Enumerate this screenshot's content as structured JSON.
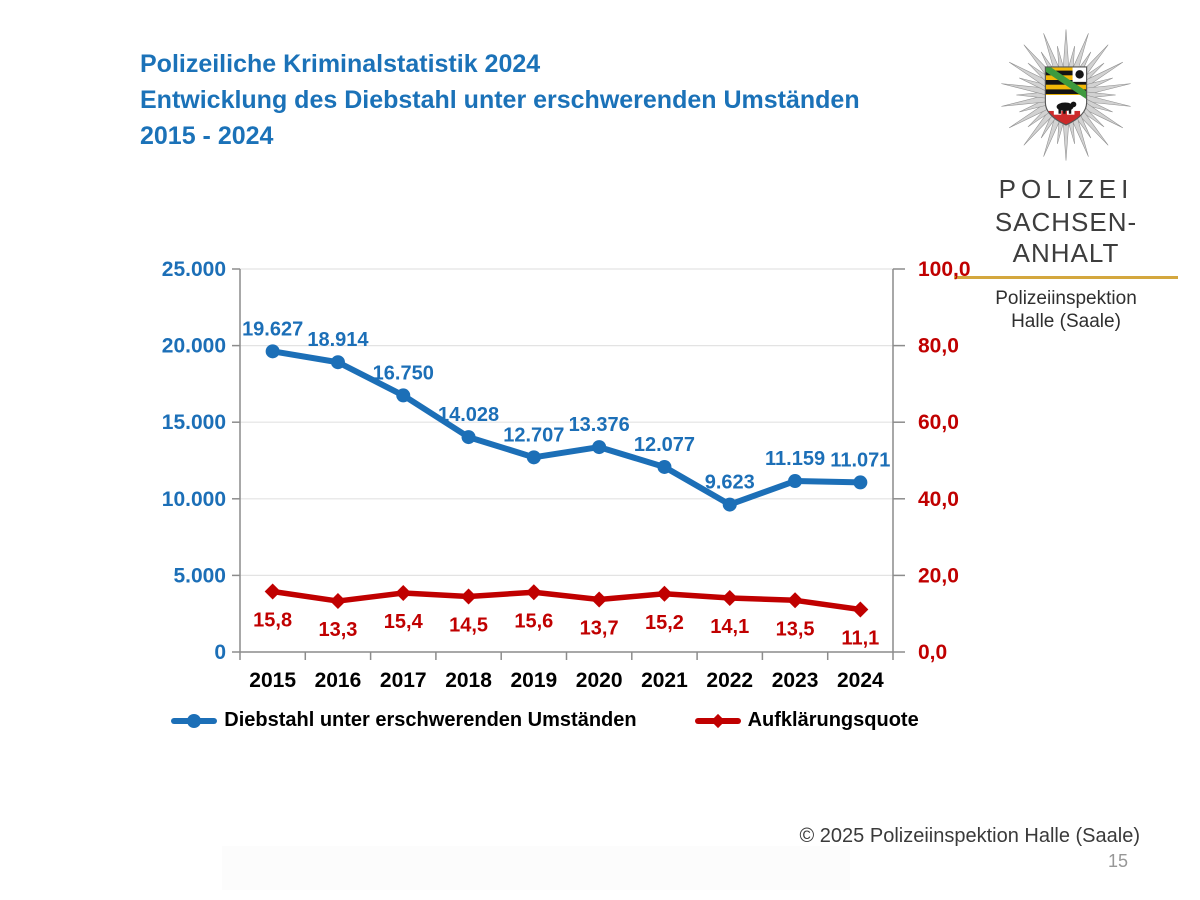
{
  "slide": {
    "title_lines": [
      "Polizeiliche Kriminalstatistik 2024",
      "Entwicklung des Diebstahl unter erschwerenden Umständen",
      "2015 - 2024"
    ],
    "title_color": "#1b72b8"
  },
  "logo": {
    "org_line1": "POLIZEI",
    "org_line2": "SACHSEN-ANHALT",
    "dept_line1": "Polizeiinspektion",
    "dept_line2": "Halle (Saale)",
    "accent_color": "#d4a73e"
  },
  "chart_data": {
    "type": "line",
    "categories": [
      "2015",
      "2016",
      "2017",
      "2018",
      "2019",
      "2020",
      "2021",
      "2022",
      "2023",
      "2024"
    ],
    "series": [
      {
        "name": "Diebstahl unter erschwerenden Umständen",
        "axis": "left",
        "color": "#1c6fb7",
        "marker": "circle",
        "values": [
          19627,
          18914,
          16750,
          14028,
          12707,
          13376,
          12077,
          9623,
          11159,
          11071
        ],
        "labels": [
          "19.627",
          "18.914",
          "16.750",
          "14.028",
          "12.707",
          "13.376",
          "12.077",
          "9.623",
          "11.159",
          "11.071"
        ],
        "label_position": "above"
      },
      {
        "name": "Aufklärungsquote",
        "axis": "right",
        "color": "#c00000",
        "marker": "diamond",
        "values": [
          15.8,
          13.3,
          15.4,
          14.5,
          15.6,
          13.7,
          15.2,
          14.1,
          13.5,
          11.1
        ],
        "labels": [
          "15,8",
          "13,3",
          "15,4",
          "14,5",
          "15,6",
          "13,7",
          "15,2",
          "14,1",
          "13,5",
          "11,1"
        ],
        "label_position": "below"
      }
    ],
    "left_axis": {
      "min": 0,
      "max": 25000,
      "color": "#1c6fb7",
      "ticks": [
        {
          "v": 0,
          "label": "0"
        },
        {
          "v": 5000,
          "label": "5.000"
        },
        {
          "v": 10000,
          "label": "10.000"
        },
        {
          "v": 15000,
          "label": "15.000"
        },
        {
          "v": 20000,
          "label": "20.000"
        },
        {
          "v": 25000,
          "label": "25.000"
        }
      ]
    },
    "right_axis": {
      "min": 0,
      "max": 100,
      "color": "#c00000",
      "ticks": [
        {
          "v": 0,
          "label": "0,0"
        },
        {
          "v": 20,
          "label": "20,0"
        },
        {
          "v": 40,
          "label": "40,0"
        },
        {
          "v": 60,
          "label": "60,0"
        },
        {
          "v": 80,
          "label": "80,0"
        },
        {
          "v": 100,
          "label": "100,0"
        }
      ]
    },
    "grid": true,
    "legend_position": "bottom"
  },
  "footer": {
    "copyright": "© 2025 Polizeiinspektion Halle (Saale)",
    "page_number": "15"
  }
}
